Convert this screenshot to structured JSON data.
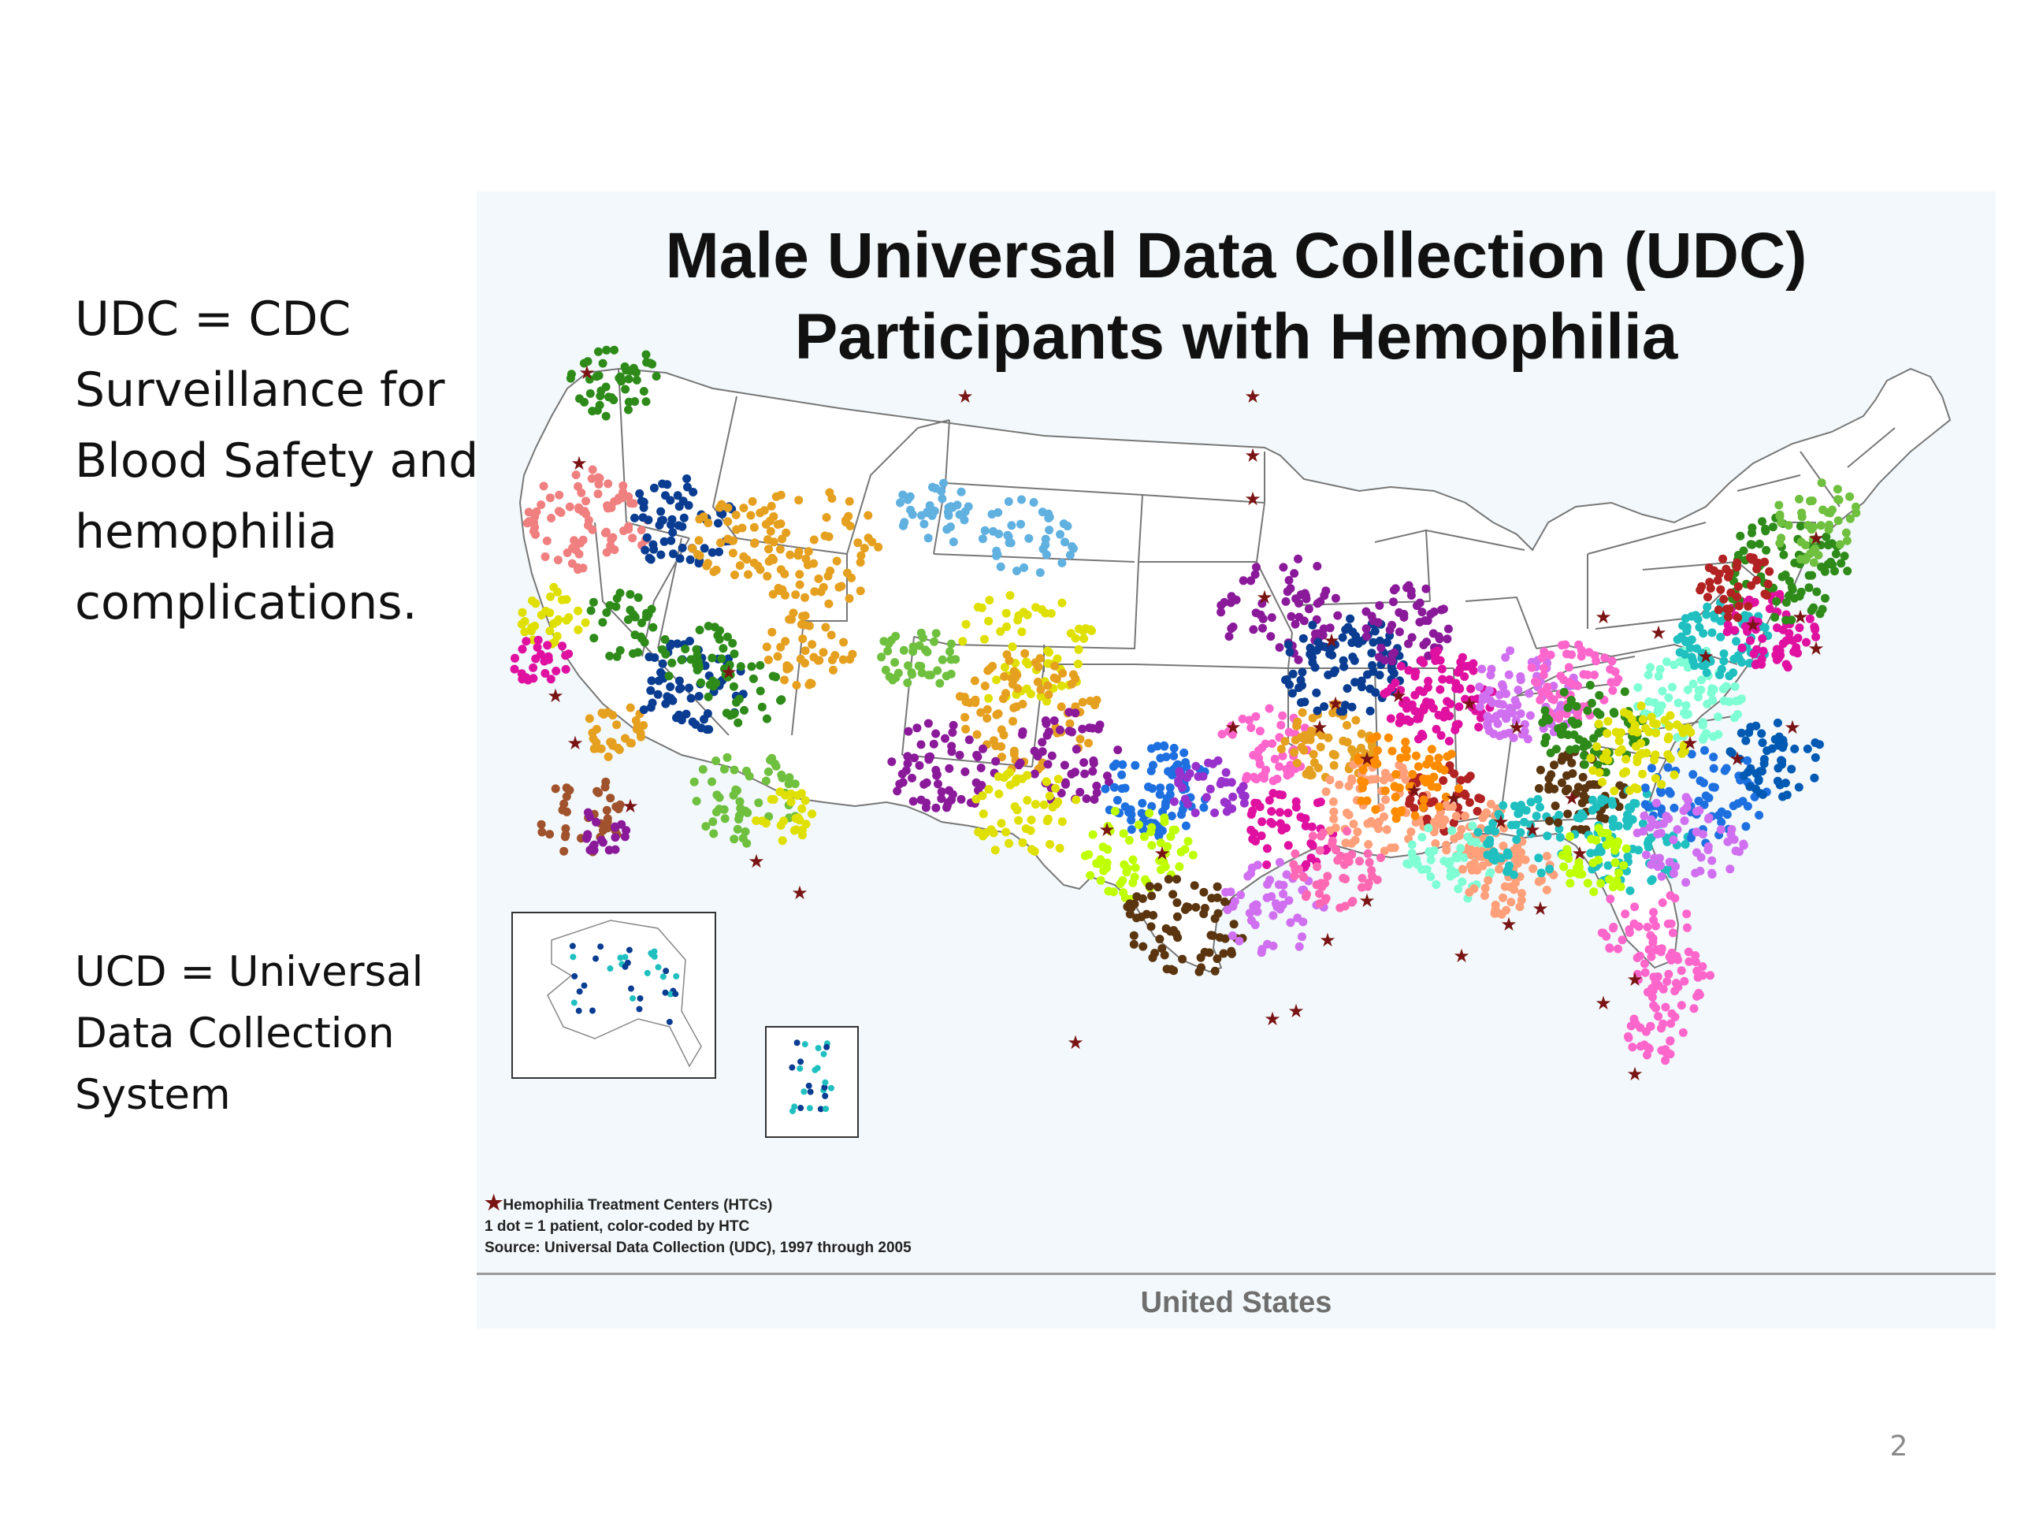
{
  "left_notes": {
    "udc": "UDC = CDC Surveillance for Blood Safety and hemophilia complications.",
    "ucd": "UCD = Universal Data Collection System"
  },
  "map": {
    "title_line1": "Male Universal Data Collection (UDC)",
    "title_line2": "Participants with Hemophilia",
    "legend_star_symbol": "★",
    "legend_htc": "Hemophilia Treatment Centers (HTCs)",
    "legend_dot": "1 dot = 1 patient, color-coded by HTC",
    "legend_source": "Source: Universal Data Collection (UDC), 1997 through 2005",
    "footer": "United States",
    "colors": {
      "background": "#f2f8fb",
      "border": "#777777",
      "star": "#7a1414"
    },
    "palette": [
      "#e8f0ff",
      "#0a3d91",
      "#e6a020",
      "#2e8b1a",
      "#f08080",
      "#e0e000",
      "#e010a0",
      "#8a1a9a",
      "#1e70e0",
      "#a0522d",
      "#70c040",
      "#ff66cc",
      "#20c0c0",
      "#d070f0",
      "#60b0e0",
      "#ffa07a",
      "#7fffd4",
      "#5a3510",
      "#bfff00",
      "#b22222",
      "#0059b3",
      "#ff8c00",
      "#008b45",
      "#ff69b4",
      "#9932cc"
    ]
  },
  "slide_number": "2"
}
